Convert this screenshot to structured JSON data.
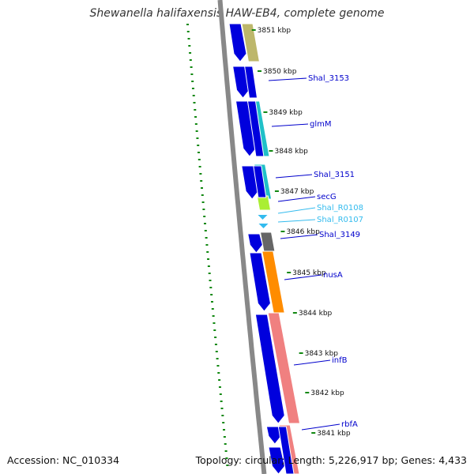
{
  "title": "Shewanella halifaxensis HAW-EB4, complete genome",
  "footer": {
    "accession": "Accession: NC_010334",
    "summary": "Topology: circular; Length: 5,226,917 bp; Genes: 4,433"
  },
  "kbp_labels": [
    {
      "text": "3851 kbp",
      "pos": 3851
    },
    {
      "text": "3850 kbp",
      "pos": 3850
    },
    {
      "text": "3849 kbp",
      "pos": 3849
    },
    {
      "text": "3848 kbp",
      "pos": 3848
    },
    {
      "text": "3847 kbp",
      "pos": 3847
    },
    {
      "text": "3846 kbp",
      "pos": 3846
    },
    {
      "text": "3845 kbp",
      "pos": 3845
    },
    {
      "text": "3844 kbp",
      "pos": 3844
    },
    {
      "text": "3843 kbp",
      "pos": 3843
    },
    {
      "text": "3842 kbp",
      "pos": 3842
    },
    {
      "text": "3841 kbp",
      "pos": 3841
    }
  ],
  "genes": [
    {
      "name": "Shal_3153",
      "color": "#0000cc",
      "type": "CDS"
    },
    {
      "name": "glmM",
      "color": "#0000cc",
      "type": "CDS"
    },
    {
      "name": "Shal_3151",
      "color": "#0000cc",
      "type": "CDS"
    },
    {
      "name": "secG",
      "color": "#0000cc",
      "type": "CDS"
    },
    {
      "name": "Shal_R0108",
      "color": "#33ccee",
      "type": "tRNA"
    },
    {
      "name": "Shal_R0107",
      "color": "#33ccee",
      "type": "tRNA"
    },
    {
      "name": "Shal_3149",
      "color": "#0000cc",
      "type": "CDS"
    },
    {
      "name": "nusA",
      "color": "#0000cc",
      "type": "CDS"
    },
    {
      "name": "infB",
      "color": "#0000cc",
      "type": "CDS"
    },
    {
      "name": "rbfA",
      "color": "#0000cc",
      "type": "CDS"
    }
  ],
  "colors": {
    "cds": "#0000dd",
    "trna": "#33bbee",
    "backbone": "#888888",
    "skew": "#118811",
    "cog_olive": "#bdb76b",
    "cog_cyan": "#20c0c8",
    "cog_lime": "#aaee33",
    "cog_gray": "#666666",
    "cog_orange": "#ff8c00",
    "cog_salmon": "#f08080"
  }
}
